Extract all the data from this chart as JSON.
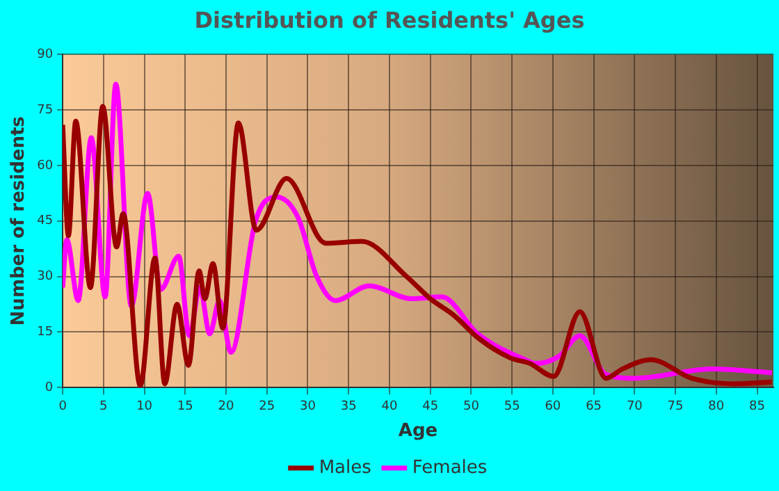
{
  "chart_data": {
    "type": "line",
    "title": "Distribution of Residents' Ages",
    "xlabel": "Age",
    "ylabel": "Number of residents",
    "xlim": [
      0,
      87
    ],
    "xticks": [
      0,
      5,
      10,
      15,
      20,
      25,
      30,
      35,
      40,
      45,
      50,
      55,
      60,
      65,
      70,
      75,
      80,
      85
    ],
    "ylim": [
      0,
      90
    ],
    "yticks": [
      0,
      15,
      30,
      45,
      60,
      75,
      90
    ],
    "grid": true,
    "legend": "bottom",
    "marker": "none",
    "line_style": "solid",
    "series": [
      {
        "name": "Males",
        "color": "#990000",
        "x": [
          0,
          0.7,
          1.6,
          3.4,
          4.9,
          6.6,
          7.4,
          9.5,
          11.3,
          12.5,
          14,
          15.4,
          16.7,
          17.4,
          18.4,
          19.6,
          21.5,
          23.7,
          27.4,
          32.2,
          36.6,
          42.1,
          45,
          47.9,
          50.8,
          54.8,
          57.2,
          60.1,
          63.3,
          66.5,
          68.5,
          72,
          77,
          82.2,
          86.8
        ],
        "values": [
          71,
          41,
          72,
          27,
          76,
          38,
          47,
          0.5,
          35,
          1,
          22.5,
          6,
          31.5,
          24,
          33.5,
          16,
          71.5,
          42.5,
          56.5,
          39,
          39.5,
          30,
          24,
          19.5,
          13.5,
          8,
          6.5,
          3,
          20.5,
          2.5,
          5,
          7.5,
          2.5,
          1,
          1.5
        ]
      },
      {
        "name": "Females",
        "color": "#ff00ff",
        "x": [
          0,
          0.5,
          1.9,
          3.5,
          5.2,
          6.5,
          8.4,
          10.4,
          12,
          14.2,
          15.5,
          16.8,
          18,
          19.2,
          20.6,
          23.6,
          26.2,
          28.8,
          31.1,
          33.4,
          37.5,
          42.7,
          46.4,
          50.8,
          56.6,
          57.9,
          60.8,
          63.3,
          66.5,
          70,
          79.5,
          86.8
        ],
        "values": [
          27,
          40,
          23.5,
          67.5,
          24.5,
          82,
          22,
          52.5,
          26.5,
          35.5,
          14,
          27,
          14.5,
          23.5,
          9.5,
          45,
          51.5,
          46,
          30,
          23.5,
          27.5,
          24,
          24.5,
          14.5,
          7.5,
          6.5,
          8.5,
          14,
          3.5,
          2.5,
          5,
          4
        ]
      }
    ]
  }
}
